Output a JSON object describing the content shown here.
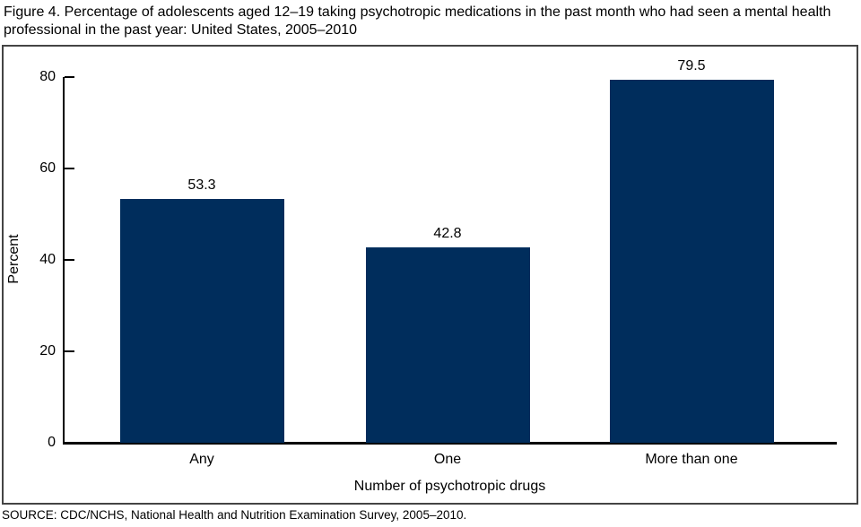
{
  "figure": {
    "title": "Figure 4. Percentage of adolescents aged 12–19 taking psychotropic medications in the past month who had seen a mental health professional in the past year: United States, 2005–2010",
    "source": "SOURCE: CDC/NCHS, National Health and Nutrition Examination Survey, 2005–2010."
  },
  "colors": {
    "bar": "#002d5c",
    "axis": "#000000",
    "frame_border": "#444444",
    "background": "#ffffff"
  },
  "chart_data": {
    "type": "bar",
    "categories": [
      "Any",
      "One",
      "More than one"
    ],
    "values": [
      53.3,
      42.8,
      79.5
    ],
    "value_labels": [
      "53.3",
      "42.8",
      "79.5"
    ],
    "title": "",
    "xlabel": "Number of psychotropic drugs",
    "ylabel": "Percent",
    "ylim": [
      0,
      80
    ],
    "yticks": [
      0,
      20,
      40,
      60,
      80
    ],
    "grid": false,
    "legend_position": "none",
    "bar_color": "#002d5c"
  }
}
